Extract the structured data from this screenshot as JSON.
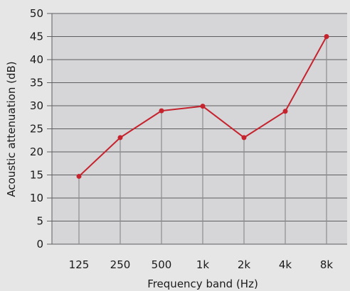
{
  "chart_data": {
    "type": "line",
    "categories": [
      "125",
      "250",
      "500",
      "1k",
      "2k",
      "4k",
      "8k"
    ],
    "series": [
      {
        "values": [
          14.7,
          23.1,
          28.9,
          29.9,
          23.1,
          28.8,
          45.0
        ]
      }
    ],
    "xlabel": "Frequency band (Hz)",
    "ylabel": "Acoustic attenuation (dB)",
    "ylim": [
      0,
      50
    ],
    "yticks": [
      0,
      5,
      10,
      15,
      20,
      25,
      30,
      35,
      40,
      45,
      50
    ],
    "grid": true,
    "colors": {
      "line": "#c5232e",
      "plot_background": "#d6d6d8",
      "page_background": "#e6e6e7",
      "grid": "#5f5f61",
      "drop_lines": "#8d8d90"
    }
  }
}
